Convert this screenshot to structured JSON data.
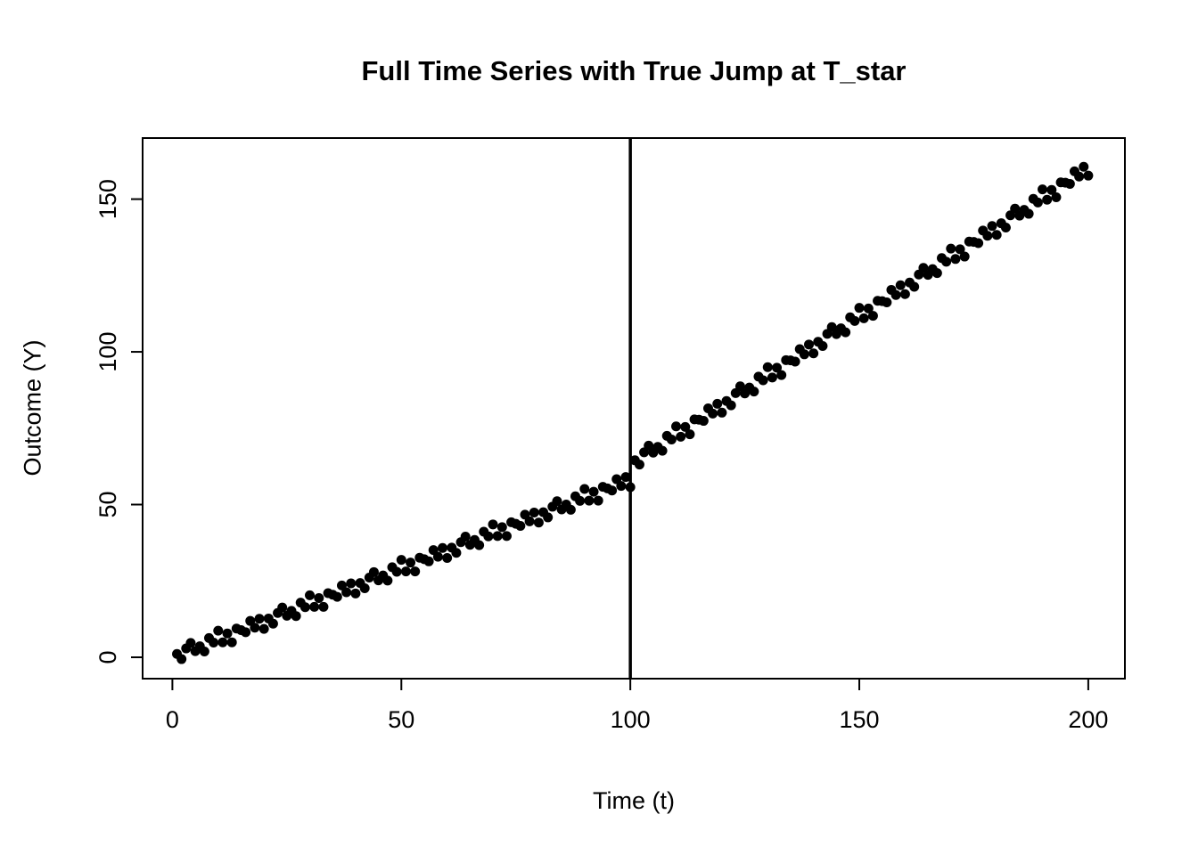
{
  "title": "Full Time Series with True Jump at T_star",
  "chart_data": {
    "type": "scatter",
    "title": "Full Time Series with True Jump at T_star",
    "xlabel": "Time (t)",
    "ylabel": "Outcome (Y)",
    "xlim": [
      -6.5,
      208
    ],
    "ylim": [
      -7,
      170
    ],
    "x_ticks": [
      0,
      50,
      100,
      150,
      200
    ],
    "y_ticks": [
      0,
      50,
      100,
      150
    ],
    "grid": false,
    "legend": "none",
    "vline_x": 100,
    "jump_at": 100,
    "point_color": "#000000",
    "vline_color": "#000000",
    "box_color": "#000000",
    "points": [
      [
        1,
        1.1
      ],
      [
        2,
        -0.6
      ],
      [
        3,
        2.9
      ],
      [
        4,
        4.7
      ],
      [
        5,
        2.0
      ],
      [
        6,
        3.6
      ],
      [
        7,
        1.9
      ],
      [
        8,
        6.3
      ],
      [
        9,
        4.8
      ],
      [
        10,
        8.7
      ],
      [
        11,
        4.9
      ],
      [
        12,
        7.8
      ],
      [
        13,
        4.9
      ],
      [
        14,
        9.4
      ],
      [
        15,
        8.9
      ],
      [
        16,
        8.2
      ],
      [
        17,
        11.9
      ],
      [
        18,
        9.7
      ],
      [
        19,
        12.6
      ],
      [
        20,
        9.3
      ],
      [
        21,
        12.7
      ],
      [
        22,
        11.0
      ],
      [
        23,
        14.5
      ],
      [
        24,
        16.3
      ],
      [
        25,
        13.6
      ],
      [
        26,
        15.2
      ],
      [
        27,
        13.5
      ],
      [
        28,
        17.9
      ],
      [
        29,
        16.4
      ],
      [
        30,
        20.3
      ],
      [
        31,
        16.5
      ],
      [
        32,
        19.4
      ],
      [
        33,
        16.5
      ],
      [
        34,
        21.0
      ],
      [
        35,
        20.5
      ],
      [
        36,
        19.8
      ],
      [
        37,
        23.5
      ],
      [
        38,
        21.3
      ],
      [
        39,
        24.2
      ],
      [
        40,
        20.9
      ],
      [
        41,
        24.3
      ],
      [
        42,
        22.6
      ],
      [
        43,
        26.1
      ],
      [
        44,
        27.9
      ],
      [
        45,
        25.2
      ],
      [
        46,
        26.8
      ],
      [
        47,
        25.1
      ],
      [
        48,
        29.5
      ],
      [
        49,
        28.0
      ],
      [
        50,
        31.9
      ],
      [
        51,
        28.1
      ],
      [
        52,
        31.0
      ],
      [
        53,
        28.1
      ],
      [
        54,
        32.6
      ],
      [
        55,
        32.1
      ],
      [
        56,
        31.4
      ],
      [
        57,
        35.1
      ],
      [
        58,
        32.9
      ],
      [
        59,
        35.8
      ],
      [
        60,
        32.5
      ],
      [
        61,
        35.9
      ],
      [
        62,
        34.2
      ],
      [
        63,
        37.7
      ],
      [
        64,
        39.5
      ],
      [
        65,
        36.8
      ],
      [
        66,
        38.4
      ],
      [
        67,
        36.7
      ],
      [
        68,
        41.1
      ],
      [
        69,
        39.6
      ],
      [
        70,
        43.5
      ],
      [
        71,
        39.7
      ],
      [
        72,
        42.6
      ],
      [
        73,
        39.7
      ],
      [
        74,
        44.2
      ],
      [
        75,
        43.7
      ],
      [
        76,
        43.0
      ],
      [
        77,
        46.7
      ],
      [
        78,
        44.5
      ],
      [
        79,
        47.4
      ],
      [
        80,
        44.1
      ],
      [
        81,
        47.5
      ],
      [
        82,
        45.8
      ],
      [
        83,
        49.3
      ],
      [
        84,
        51.1
      ],
      [
        85,
        48.4
      ],
      [
        86,
        50.0
      ],
      [
        87,
        48.3
      ],
      [
        88,
        52.7
      ],
      [
        89,
        51.2
      ],
      [
        90,
        55.1
      ],
      [
        91,
        51.3
      ],
      [
        92,
        54.2
      ],
      [
        93,
        51.3
      ],
      [
        94,
        55.8
      ],
      [
        95,
        55.3
      ],
      [
        96,
        54.6
      ],
      [
        97,
        58.3
      ],
      [
        98,
        56.1
      ],
      [
        99,
        59.0
      ],
      [
        100,
        55.7
      ],
      [
        101,
        64.5
      ],
      [
        102,
        63.1
      ],
      [
        103,
        67.1
      ],
      [
        104,
        69.3
      ],
      [
        105,
        67.0
      ],
      [
        106,
        68.9
      ],
      [
        107,
        67.6
      ],
      [
        108,
        72.5
      ],
      [
        109,
        71.3
      ],
      [
        110,
        75.6
      ],
      [
        111,
        72.2
      ],
      [
        112,
        75.4
      ],
      [
        113,
        73.0
      ],
      [
        114,
        77.9
      ],
      [
        115,
        77.8
      ],
      [
        116,
        77.4
      ],
      [
        117,
        81.5
      ],
      [
        118,
        79.8
      ],
      [
        119,
        83.0
      ],
      [
        120,
        80.1
      ],
      [
        121,
        83.9
      ],
      [
        122,
        82.5
      ],
      [
        123,
        86.5
      ],
      [
        124,
        88.7
      ],
      [
        125,
        86.4
      ],
      [
        126,
        88.3
      ],
      [
        127,
        87.0
      ],
      [
        128,
        91.9
      ],
      [
        129,
        90.7
      ],
      [
        130,
        95.0
      ],
      [
        131,
        91.6
      ],
      [
        132,
        94.8
      ],
      [
        133,
        92.4
      ],
      [
        134,
        97.3
      ],
      [
        135,
        97.2
      ],
      [
        136,
        96.8
      ],
      [
        137,
        100.9
      ],
      [
        138,
        99.2
      ],
      [
        139,
        102.4
      ],
      [
        140,
        99.5
      ],
      [
        141,
        103.3
      ],
      [
        142,
        101.9
      ],
      [
        143,
        105.9
      ],
      [
        144,
        108.1
      ],
      [
        145,
        105.8
      ],
      [
        146,
        107.7
      ],
      [
        147,
        106.4
      ],
      [
        148,
        111.3
      ],
      [
        149,
        110.1
      ],
      [
        150,
        114.4
      ],
      [
        151,
        111.0
      ],
      [
        152,
        114.2
      ],
      [
        153,
        111.8
      ],
      [
        154,
        116.7
      ],
      [
        155,
        116.6
      ],
      [
        156,
        116.2
      ],
      [
        157,
        120.3
      ],
      [
        158,
        118.6
      ],
      [
        159,
        121.8
      ],
      [
        160,
        118.9
      ],
      [
        161,
        122.7
      ],
      [
        162,
        121.3
      ],
      [
        163,
        125.3
      ],
      [
        164,
        127.5
      ],
      [
        165,
        125.2
      ],
      [
        166,
        127.1
      ],
      [
        167,
        125.8
      ],
      [
        168,
        130.7
      ],
      [
        169,
        129.5
      ],
      [
        170,
        133.8
      ],
      [
        171,
        130.4
      ],
      [
        172,
        133.6
      ],
      [
        173,
        131.2
      ],
      [
        174,
        136.1
      ],
      [
        175,
        136.0
      ],
      [
        176,
        135.6
      ],
      [
        177,
        139.7
      ],
      [
        178,
        138.0
      ],
      [
        179,
        141.2
      ],
      [
        180,
        138.3
      ],
      [
        181,
        142.1
      ],
      [
        182,
        140.7
      ],
      [
        183,
        144.7
      ],
      [
        184,
        146.9
      ],
      [
        185,
        144.6
      ],
      [
        186,
        146.5
      ],
      [
        187,
        145.2
      ],
      [
        188,
        150.1
      ],
      [
        189,
        148.9
      ],
      [
        190,
        153.2
      ],
      [
        191,
        149.8
      ],
      [
        192,
        153.0
      ],
      [
        193,
        150.6
      ],
      [
        194,
        155.5
      ],
      [
        195,
        155.4
      ],
      [
        196,
        155.0
      ],
      [
        197,
        159.1
      ],
      [
        198,
        157.4
      ],
      [
        199,
        160.6
      ],
      [
        200,
        157.7
      ]
    ]
  }
}
